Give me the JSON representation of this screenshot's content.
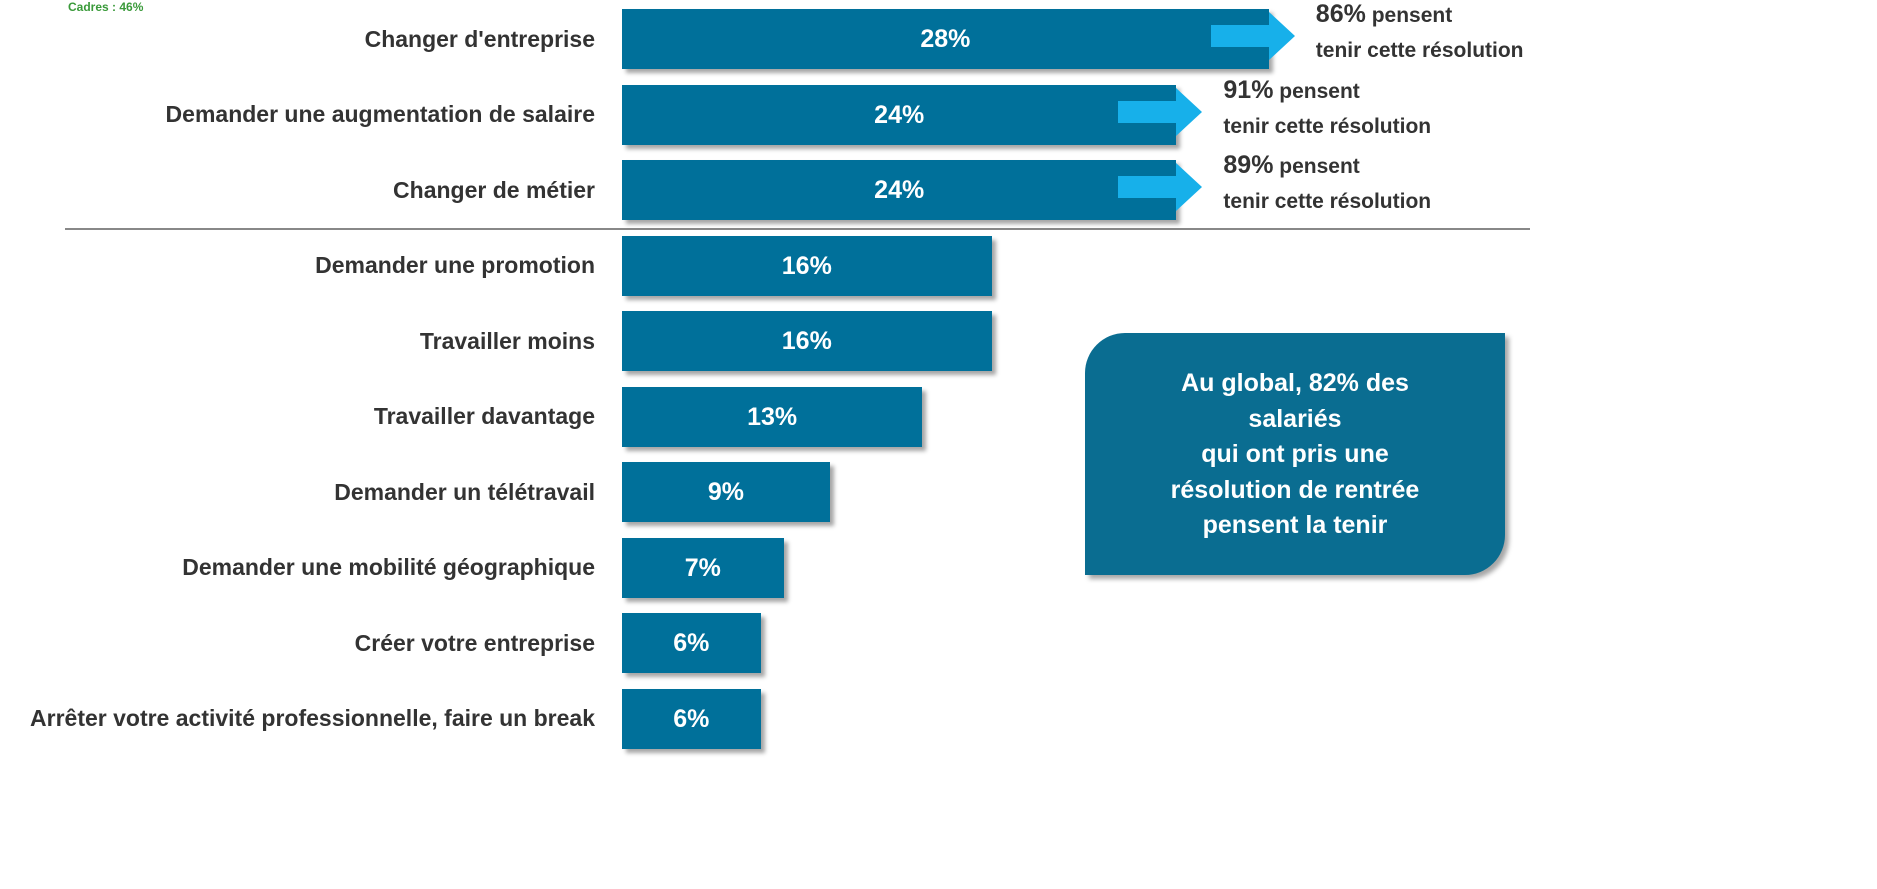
{
  "chart_data": {
    "type": "bar",
    "orientation": "horizontal",
    "note": "Cadres : 46%",
    "categories": [
      "Changer d'entreprise",
      "Demander une augmentation de salaire",
      "Changer de métier",
      "Demander une promotion",
      "Travailler moins",
      "Travailler davantage",
      "Demander un télétravail",
      "Demander une mobilité géographique",
      "Créer votre entreprise",
      "Arrêter votre activité professionnelle, faire un break"
    ],
    "values": [
      28,
      24,
      24,
      16,
      16,
      13,
      9,
      7,
      6,
      6
    ],
    "value_labels": [
      "28%",
      "24%",
      "24%",
      "16%",
      "16%",
      "13%",
      "9%",
      "7%",
      "6%",
      "6%"
    ],
    "color": "#00709a",
    "xlim": [
      0,
      40
    ],
    "resolution_notes": [
      {
        "label": "86%",
        "text": "pensent",
        "line2": "tenir cette résolution"
      },
      {
        "label": "91%",
        "text": "pensent",
        "line2": "tenir cette résolution"
      },
      {
        "label": "89%",
        "text": "pensent",
        "line2": "tenir cette résolution"
      }
    ],
    "arrow_color": "#17b0ea",
    "callout": [
      "Au global, 82% des",
      "salariés",
      "qui ont pris une",
      "résolution de rentrée",
      "pensent la tenir"
    ],
    "callout_color": "#0a6d91"
  }
}
